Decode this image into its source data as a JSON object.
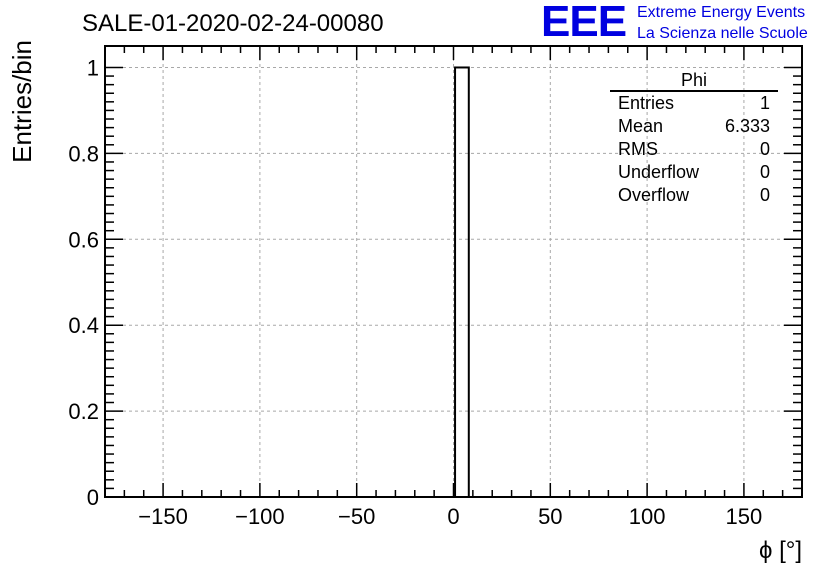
{
  "chart_data": {
    "type": "bar",
    "title": "SALE-01-2020-02-24-00080",
    "xlabel": "ϕ [°]",
    "ylabel": "Entries/bin",
    "xlim": [
      -180,
      180
    ],
    "ylim": [
      0,
      1.05
    ],
    "xticks": [
      -150,
      -100,
      -50,
      0,
      50,
      100,
      150
    ],
    "xtick_labels": [
      "−150",
      "−100",
      "−50",
      "0",
      "50",
      "100",
      "150"
    ],
    "yticks": [
      0,
      0.2,
      0.4,
      0.6,
      0.8,
      1
    ],
    "ytick_labels": [
      "0",
      "0.2",
      "0.4",
      "0.6",
      "0.8",
      "1"
    ],
    "grid": true,
    "bins": [
      {
        "low": 0.8,
        "high": 7.9,
        "value": 1
      }
    ]
  },
  "stats_box": {
    "title": "Phi",
    "rows": [
      {
        "key": "Entries",
        "value": "1"
      },
      {
        "key": "Mean",
        "value": "6.333"
      },
      {
        "key": "RMS",
        "value": "0"
      },
      {
        "key": "Underflow",
        "value": "0"
      },
      {
        "key": "Overflow",
        "value": "0"
      }
    ]
  },
  "logo": {
    "mark": "EEE",
    "line1": "Extreme Energy Events",
    "line2": "La Scienza nelle Scuole",
    "color": "#0000e0"
  }
}
